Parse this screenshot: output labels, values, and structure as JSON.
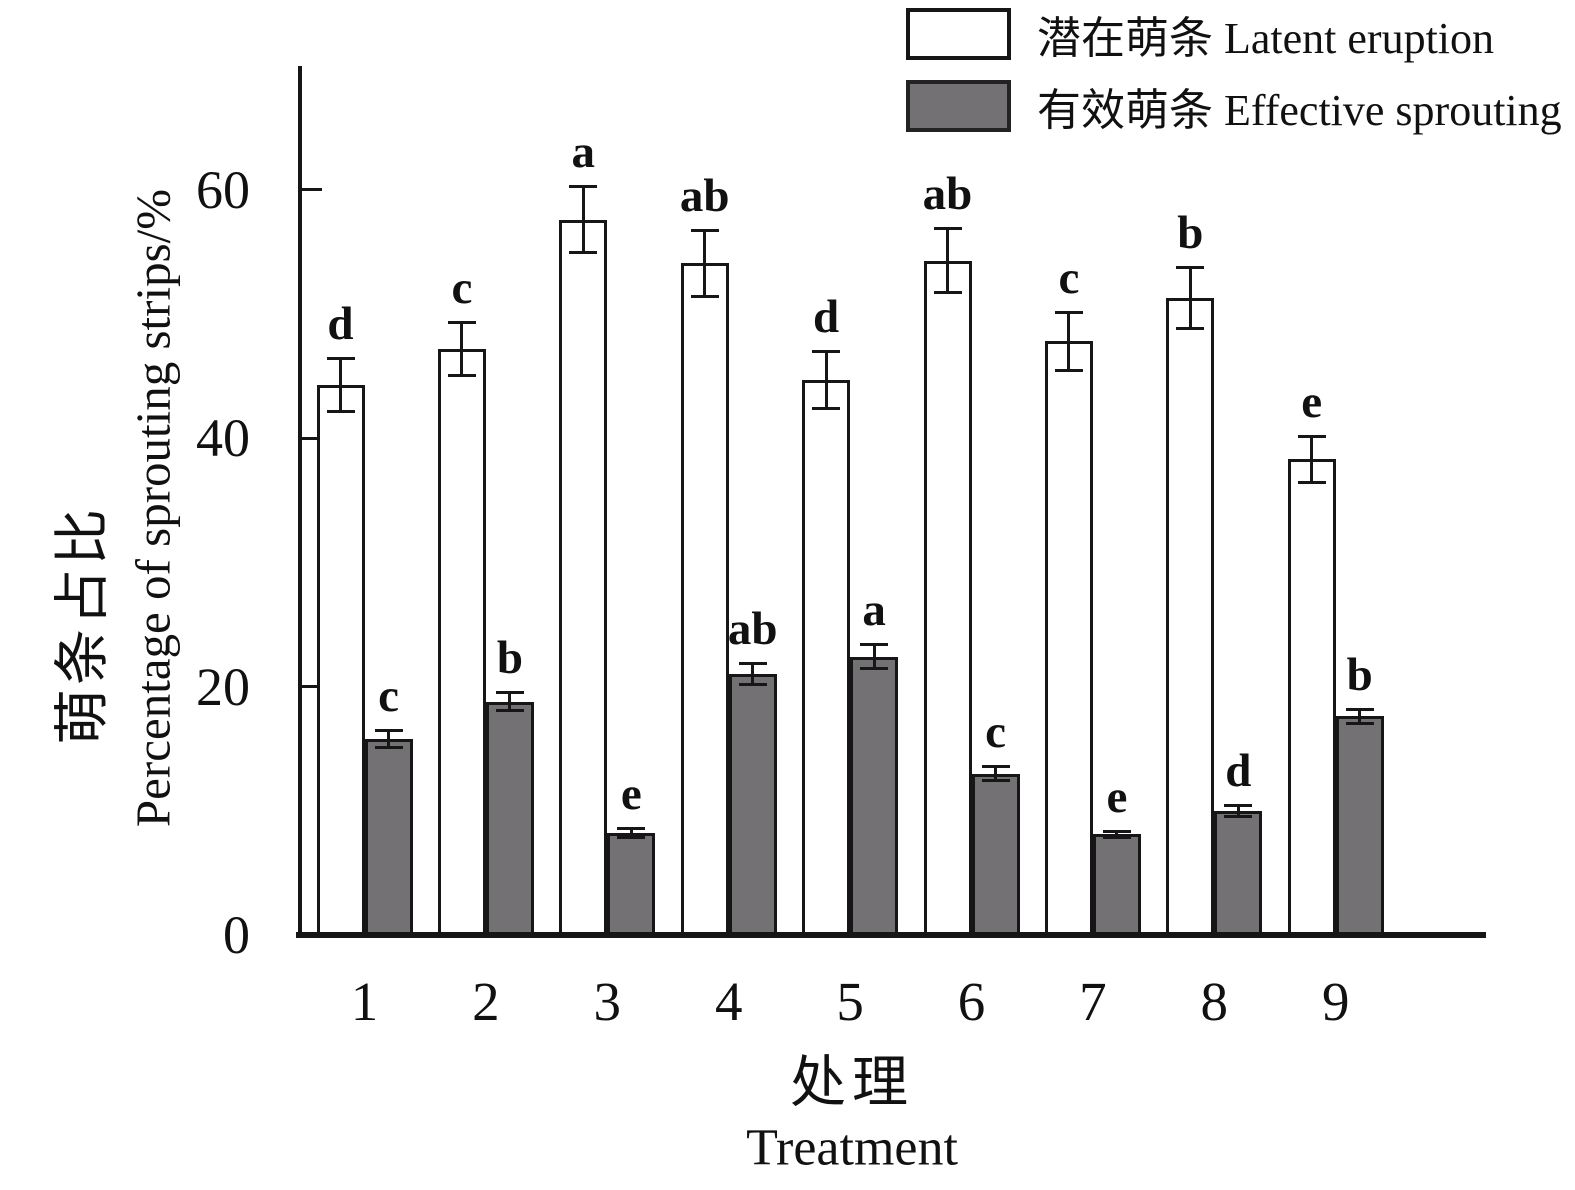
{
  "colors": {
    "background": "#ffffff",
    "axis": "#161616",
    "bar_border": "#161616",
    "latent_fill": "#ffffff",
    "effective_fill": "#737173",
    "text": "#111111"
  },
  "legend": {
    "items": [
      {
        "label": "潜在萌条 Latent eruption",
        "swatch": "white"
      },
      {
        "label": "有效萌条 Effective sprouting",
        "swatch": "gray"
      }
    ]
  },
  "chart_data": {
    "type": "bar",
    "title": "",
    "categories": [
      "1",
      "2",
      "3",
      "4",
      "5",
      "6",
      "7",
      "8",
      "9"
    ],
    "series": [
      {
        "name": "潜在萌条 Latent eruption",
        "fill": "#ffffff",
        "values": [
          44.3,
          47.2,
          57.6,
          54.1,
          44.7,
          54.3,
          47.8,
          51.3,
          38.3
        ],
        "errors": [
          2.2,
          2.2,
          2.7,
          2.7,
          2.3,
          2.6,
          2.4,
          2.5,
          1.9
        ],
        "letters": [
          "d",
          "c",
          "a",
          "ab",
          "d",
          "ab",
          "c",
          "b",
          "e"
        ]
      },
      {
        "name": "有效萌条 Effective sprouting",
        "fill": "#737173",
        "values": [
          15.8,
          18.8,
          8.2,
          21.0,
          22.4,
          13.0,
          8.1,
          10.0,
          17.6
        ],
        "errors": [
          0.7,
          0.8,
          0.4,
          0.9,
          1.0,
          0.6,
          0.3,
          0.5,
          0.6
        ],
        "letters": [
          "c",
          "b",
          "e",
          "ab",
          "a",
          "c",
          "e",
          "d",
          "b"
        ]
      }
    ],
    "ylabel_zh": "萌条占比",
    "ylabel_en": "Percentage of sprouting strips/%",
    "xlabel_zh": "处理",
    "xlabel_en": "Treatment",
    "yticks": [
      0,
      20,
      40,
      60
    ],
    "ylim": [
      0,
      70
    ],
    "grid": false,
    "legend_position": "top-right",
    "error_bars": true
  }
}
